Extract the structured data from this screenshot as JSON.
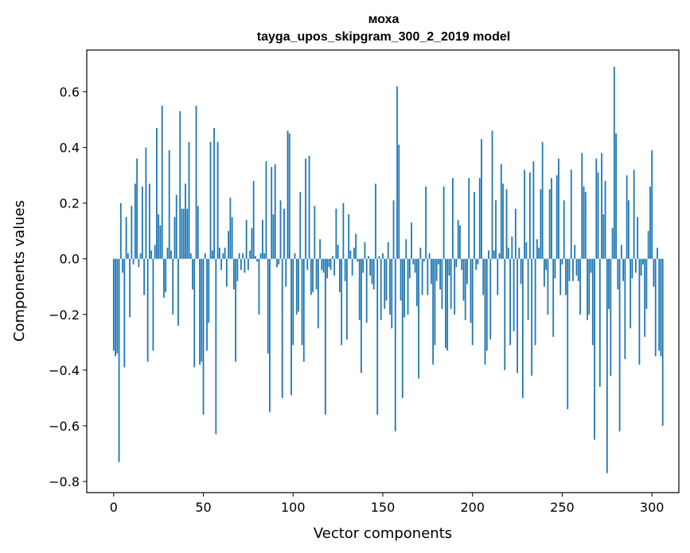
{
  "chart_data": {
    "type": "bar",
    "title_line1": "моха",
    "title_line2": "tayga_upos_skipgram_300_2_2019 model",
    "xlabel": "Vector components",
    "ylabel": "Components values",
    "xlim": [
      -15,
      315
    ],
    "ylim": [
      -0.84,
      0.75
    ],
    "x_ticks": [
      0,
      50,
      100,
      150,
      200,
      250,
      300
    ],
    "x_tick_labels": [
      "0",
      "50",
      "100",
      "150",
      "200",
      "250",
      "300"
    ],
    "y_ticks": [
      -0.8,
      -0.6,
      -0.4,
      -0.2,
      0.0,
      0.2,
      0.4,
      0.6
    ],
    "y_tick_labels": [
      "−0.8",
      "−0.6",
      "−0.4",
      "−0.2",
      "0.0",
      "0.2",
      "0.4",
      "0.6"
    ],
    "bar_color": "#1f77b4",
    "values": [
      -0.33,
      -0.35,
      -0.34,
      -0.73,
      0.2,
      -0.05,
      -0.39,
      0.15,
      0.02,
      -0.21,
      0.19,
      -0.02,
      0.27,
      0.36,
      -0.03,
      0.02,
      0.26,
      -0.13,
      0.4,
      -0.37,
      0.27,
      0.03,
      -0.33,
      0.05,
      0.47,
      0.16,
      0.12,
      0.55,
      -0.14,
      -0.12,
      0.04,
      0.39,
      0.03,
      -0.2,
      0.15,
      0.23,
      -0.24,
      0.53,
      0.18,
      0.18,
      0.27,
      0.18,
      0.42,
      0.02,
      -0.11,
      -0.39,
      0.55,
      0.19,
      -0.38,
      -0.37,
      -0.56,
      0.02,
      -0.33,
      -0.23,
      0.42,
      0.03,
      0.47,
      -0.63,
      0.42,
      0.04,
      -0.04,
      0.02,
      0.04,
      -0.1,
      0.1,
      0.22,
      0.15,
      -0.11,
      -0.37,
      -0.08,
      0.02,
      -0.04,
      0.02,
      -0.05,
      0.14,
      -0.04,
      0.03,
      0.11,
      0.28,
      0.01,
      -0.01,
      -0.2,
      0.02,
      0.14,
      0.02,
      0.35,
      -0.34,
      -0.55,
      0.33,
      0.16,
      0.34,
      -0.03,
      -0.02,
      0.21,
      -0.5,
      0.18,
      -0.1,
      0.46,
      0.45,
      -0.49,
      -0.31,
      0.02,
      -0.2,
      -0.19,
      0.24,
      -0.31,
      -0.37,
      0.36,
      -0.04,
      0.37,
      -0.13,
      -0.12,
      0.19,
      -0.11,
      -0.25,
      0.07,
      -0.04,
      -0.05,
      -0.56,
      -0.07,
      -0.03,
      -0.04,
      0.01,
      -0.06,
      0.18,
      0.05,
      -0.12,
      -0.31,
      0.2,
      -0.08,
      -0.29,
      0.16,
      0.03,
      -0.06,
      0.04,
      0.09,
      -0.01,
      -0.22,
      -0.41,
      -0.05,
      0.06,
      -0.23,
      0.01,
      -0.06,
      -0.09,
      -0.11,
      0.27,
      -0.56,
      0.01,
      -0.22,
      0.02,
      -0.18,
      -0.15,
      0.06,
      -0.2,
      -0.25,
      0.21,
      -0.62,
      0.62,
      0.41,
      -0.15,
      -0.5,
      -0.21,
      0.07,
      -0.2,
      -0.07,
      0.13,
      -0.02,
      -0.05,
      -0.17,
      -0.43,
      0.04,
      -0.13,
      -0.01,
      0.26,
      -0.13,
      0.02,
      -0.09,
      -0.38,
      -0.31,
      -0.08,
      -0.02,
      -0.11,
      -0.18,
      0.26,
      -0.32,
      -0.33,
      -0.06,
      -0.18,
      0.29,
      -0.2,
      -0.03,
      0.14,
      0.12,
      -0.04,
      -0.15,
      -0.22,
      -0.09,
      0.29,
      -0.23,
      -0.31,
      0.24,
      -0.04,
      -0.02,
      0.29,
      0.43,
      -0.13,
      -0.38,
      -0.33,
      0.03,
      -0.29,
      0.46,
      0.03,
      0.21,
      -0.13,
      0.02,
      0.34,
      0.27,
      -0.4,
      0.25,
      0.04,
      -0.31,
      0.08,
      -0.26,
      0.18,
      -0.41,
      0.04,
      -0.09,
      -0.5,
      0.32,
      0.06,
      -0.22,
      0.31,
      -0.42,
      0.35,
      -0.31,
      0.07,
      0.04,
      0.25,
      0.42,
      -0.1,
      -0.04,
      -0.2,
      0.25,
      0.29,
      -0.28,
      -0.07,
      0.3,
      0.36,
      -0.13,
      -0.02,
      0.21,
      -0.13,
      -0.54,
      -0.08,
      0.32,
      -0.08,
      0.05,
      -0.06,
      -0.08,
      -0.2,
      0.38,
      0.26,
      0.24,
      -0.22,
      -0.2,
      -0.05,
      -0.31,
      -0.65,
      0.36,
      0.31,
      -0.46,
      0.38,
      0.16,
      0.28,
      -0.77,
      -0.18,
      -0.42,
      0.11,
      0.69,
      0.45,
      -0.11,
      -0.62,
      0.05,
      -0.08,
      -0.36,
      0.3,
      0.21,
      -0.25,
      -0.07,
      0.32,
      -0.05,
      0.15,
      -0.38,
      -0.06,
      -0.02,
      -0.28,
      -0.18,
      0.1,
      0.26,
      0.39,
      -0.1,
      -0.35,
      0.04,
      -0.33,
      -0.35,
      -0.6
    ]
  }
}
